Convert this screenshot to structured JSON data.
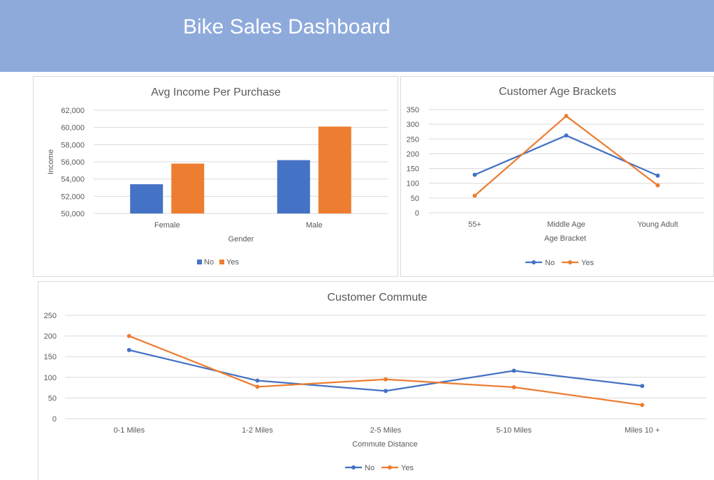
{
  "page": {
    "title": "Bike Sales Dashboard",
    "colors": {
      "header": "#8eaadb",
      "no": "#4472c4",
      "yes": "#ed7d31",
      "grid": "#d9d9d9",
      "text": "#595959"
    }
  },
  "chart_data": [
    {
      "type": "bar",
      "title": "Avg Income Per Purchase",
      "xlabel": "Gender",
      "ylabel": "Income",
      "categories": [
        "Female",
        "Male"
      ],
      "series": [
        {
          "name": "No",
          "values": [
            53400,
            56200
          ]
        },
        {
          "name": "Yes",
          "values": [
            55800,
            60100
          ]
        }
      ],
      "ylim": [
        50000,
        62000
      ],
      "yticks": [
        "50,000",
        "52,000",
        "54,000",
        "56,000",
        "58,000",
        "60,000",
        "62,000"
      ],
      "grid": true,
      "legend": "bottom"
    },
    {
      "type": "line",
      "title": "Customer Age Brackets",
      "xlabel": "Age Bracket",
      "ylabel": "",
      "categories": [
        "55+",
        "Middle Age",
        "Young Adult"
      ],
      "series": [
        {
          "name": "No",
          "values": [
            129,
            262,
            126
          ]
        },
        {
          "name": "Yes",
          "values": [
            58,
            328,
            93
          ]
        }
      ],
      "ylim": [
        0,
        350
      ],
      "yticks": [
        "0",
        "50",
        "100",
        "150",
        "200",
        "250",
        "300",
        "350"
      ],
      "grid": true,
      "legend": "bottom"
    },
    {
      "type": "line",
      "title": "Customer Commute",
      "xlabel": "Commute Distance",
      "ylabel": "",
      "categories": [
        "0-1 Miles",
        "1-2 Miles",
        "2-5 Miles",
        "5-10 Miles",
        "Miles 10 +"
      ],
      "series": [
        {
          "name": "No",
          "values": [
            166,
            92,
            67,
            116,
            79
          ]
        },
        {
          "name": "Yes",
          "values": [
            200,
            77,
            95,
            76,
            33
          ]
        }
      ],
      "ylim": [
        0,
        250
      ],
      "yticks": [
        "0",
        "50",
        "100",
        "150",
        "200",
        "250"
      ],
      "grid": true,
      "legend": "bottom"
    }
  ]
}
